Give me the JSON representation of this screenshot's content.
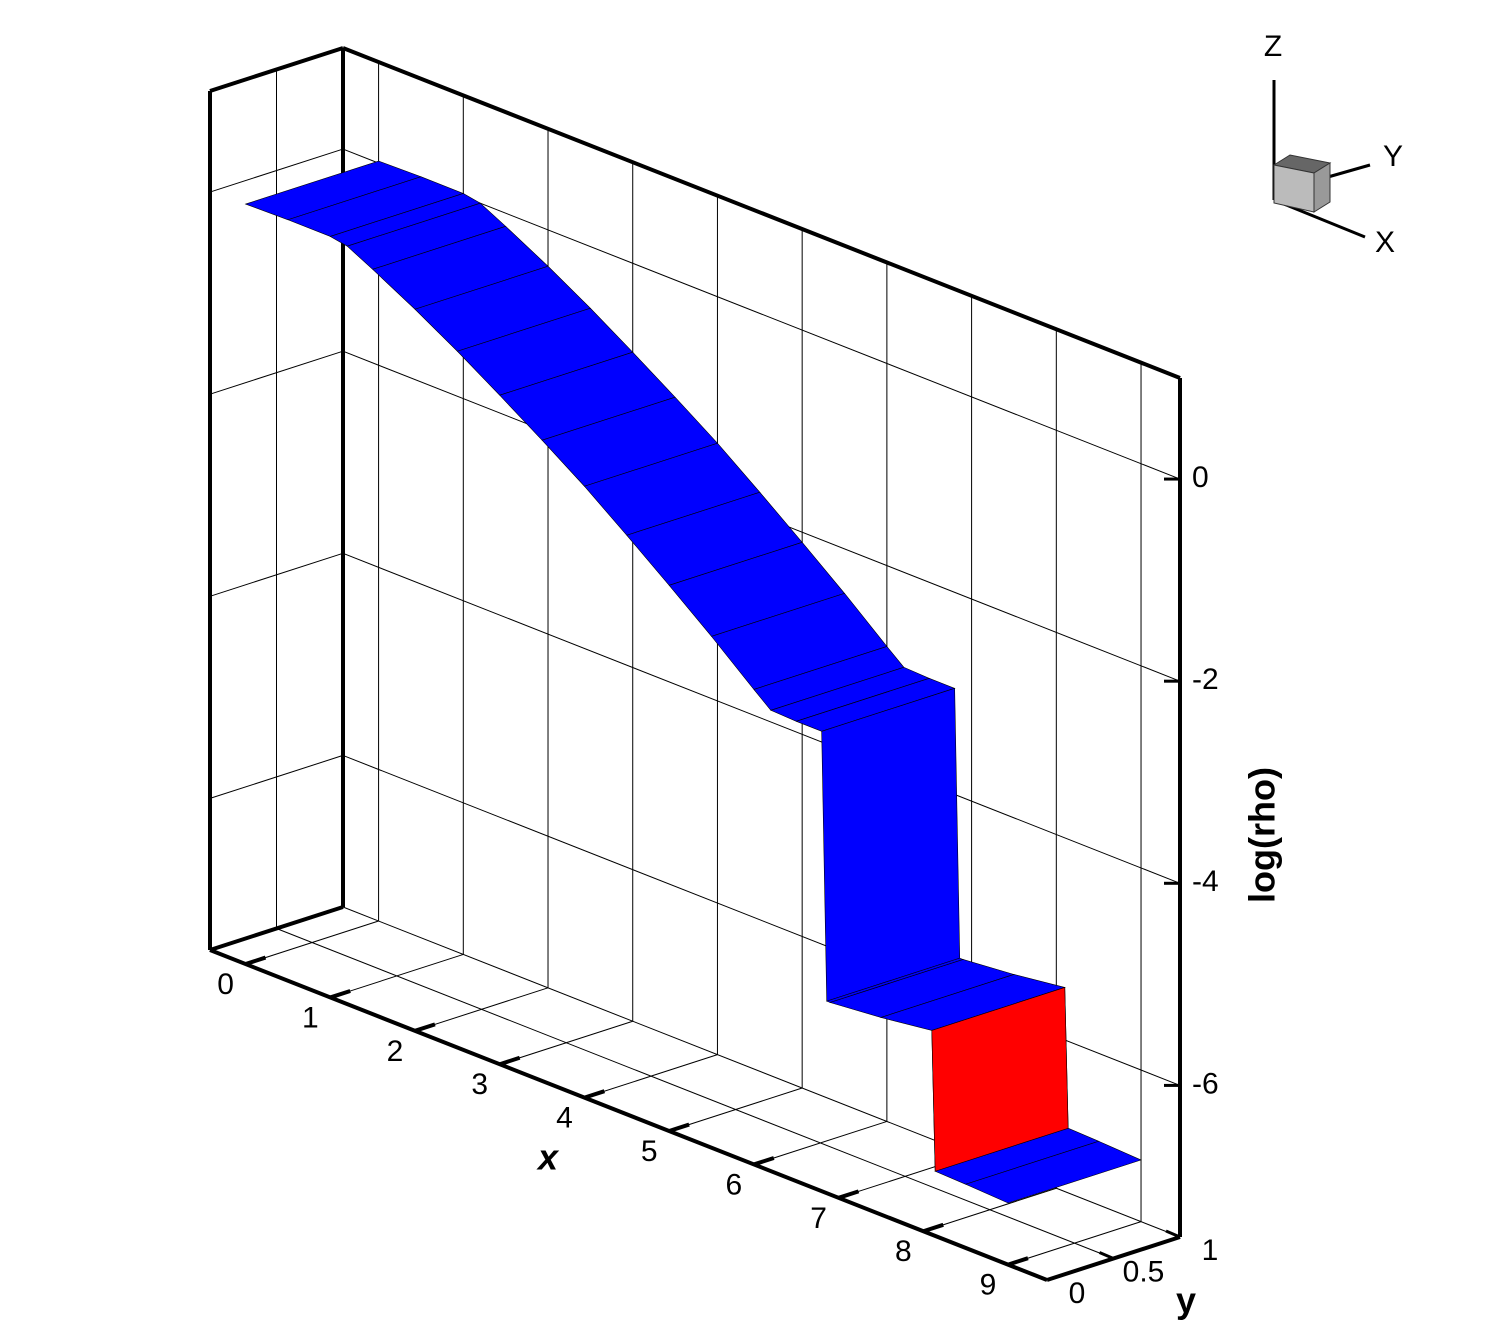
{
  "chart_data": {
    "type": "surface3d",
    "x": [
      0,
      0.5,
      1,
      1.2,
      1.5,
      2,
      2.5,
      3,
      3.5,
      4,
      4.5,
      5,
      5.5,
      6,
      6.2,
      6.5,
      6.8,
      6.86,
      6.9,
      7.5,
      8.1,
      8.14,
      8.5,
      9
    ],
    "series": [
      {
        "color": "#0000ff",
        "values": [
          0.02,
          0.03,
          0.03,
          0,
          -0.13,
          -0.36,
          -0.61,
          -0.88,
          -1.16,
          -1.45,
          -1.77,
          -2.1,
          -2.44,
          -2.8,
          -2.94,
          -2.95,
          -2.95,
          -5.6,
          -5.6,
          -5.55,
          -5.48,
          -6.86,
          -6.87,
          -6.89
        ]
      },
      {
        "color": "#ff0000",
        "values": [
          null,
          null,
          null,
          null,
          null,
          null,
          null,
          null,
          null,
          null,
          null,
          null,
          null,
          null,
          null,
          null,
          null,
          null,
          null,
          null,
          -5.48,
          -6.86,
          null,
          null
        ]
      }
    ],
    "xlabel": "x",
    "ylabel": "y",
    "zlabel": "log(rho)",
    "xlim": [
      -0.42,
      9.46
    ],
    "ylim": [
      0,
      1
    ],
    "zlim": [
      -7.5,
      1
    ],
    "xticks": [
      0,
      1,
      2,
      3,
      4,
      5,
      6,
      7,
      8,
      9
    ],
    "yticks": [
      0,
      0.5,
      1
    ],
    "zticks": [
      -6,
      -4,
      -2,
      0
    ],
    "grid": true,
    "orientation_axes": {
      "x": "X",
      "y": "Y",
      "z": "Z"
    }
  }
}
